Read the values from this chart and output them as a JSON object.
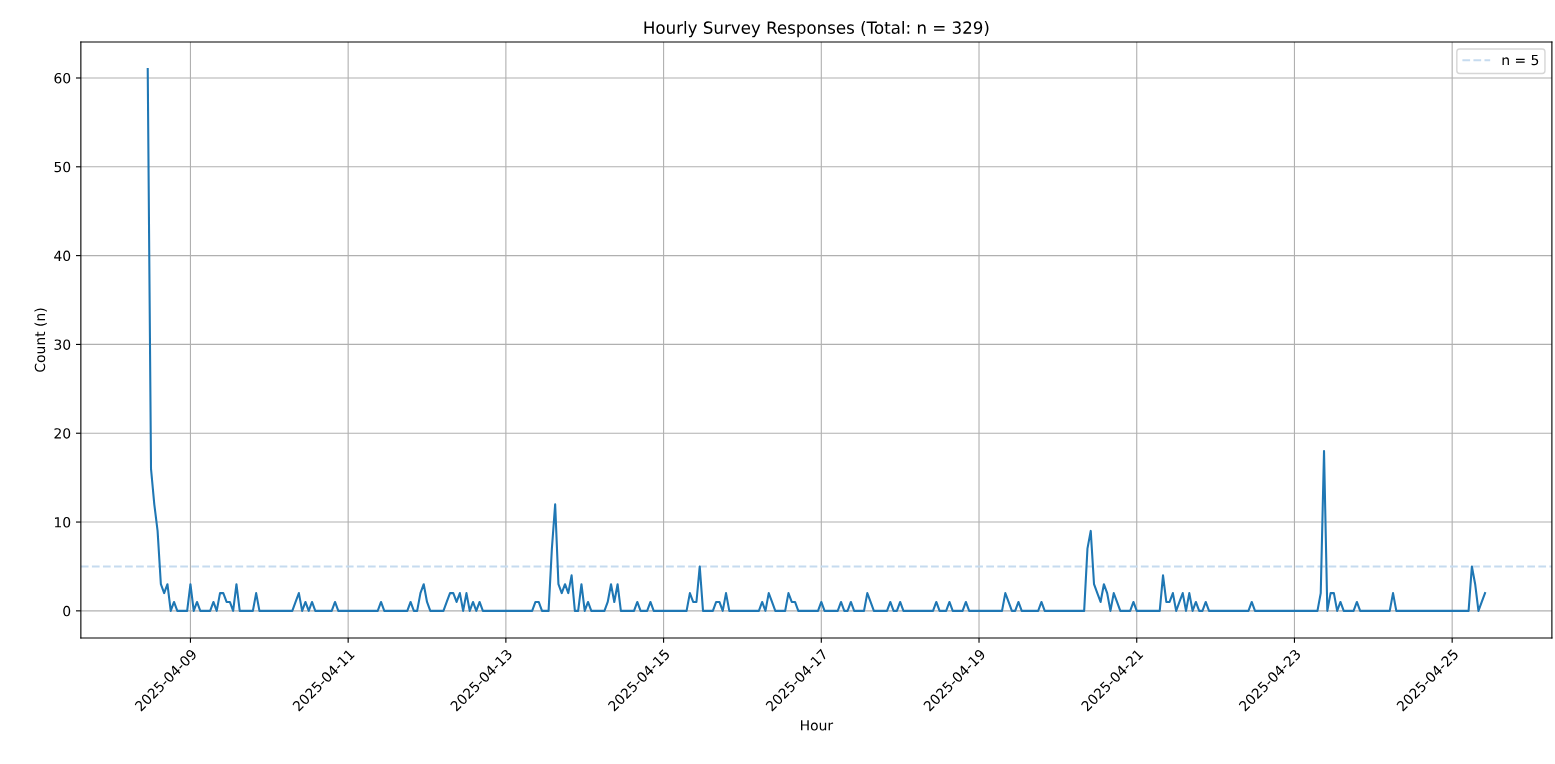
{
  "chart_data": {
    "type": "line",
    "title": "Hourly Survey Responses (Total: n = 329)",
    "xlabel": "Hour",
    "ylabel": "Count (n)",
    "x": [
      "2025-04-08T11:00",
      "2025-04-08T12:00",
      "2025-04-08T13:00",
      "2025-04-08T14:00",
      "2025-04-08T15:00",
      "2025-04-08T16:00",
      "2025-04-08T17:00",
      "2025-04-08T18:00",
      "2025-04-08T19:00",
      "2025-04-08T20:00",
      "2025-04-08T23:00",
      "2025-04-09T00:00",
      "2025-04-09T01:00",
      "2025-04-09T02:00",
      "2025-04-09T03:00",
      "2025-04-09T06:00",
      "2025-04-09T07:00",
      "2025-04-09T08:00",
      "2025-04-09T09:00",
      "2025-04-09T10:00",
      "2025-04-09T11:00",
      "2025-04-09T12:00",
      "2025-04-09T13:00",
      "2025-04-09T14:00",
      "2025-04-09T15:00",
      "2025-04-09T19:00",
      "2025-04-09T20:00",
      "2025-04-09T21:00",
      "2025-04-10T07:00",
      "2025-04-10T08:00",
      "2025-04-10T09:00",
      "2025-04-10T10:00",
      "2025-04-10T11:00",
      "2025-04-10T12:00",
      "2025-04-10T13:00",
      "2025-04-10T14:00",
      "2025-04-10T19:00",
      "2025-04-10T20:00",
      "2025-04-10T21:00",
      "2025-04-11T09:00",
      "2025-04-11T10:00",
      "2025-04-11T11:00",
      "2025-04-11T18:00",
      "2025-04-11T19:00",
      "2025-04-11T20:00",
      "2025-04-11T21:00",
      "2025-04-11T22:00",
      "2025-04-11T23:00",
      "2025-04-12T00:00",
      "2025-04-12T01:00",
      "2025-04-12T05:00",
      "2025-04-12T06:00",
      "2025-04-12T07:00",
      "2025-04-12T08:00",
      "2025-04-12T09:00",
      "2025-04-12T10:00",
      "2025-04-12T11:00",
      "2025-04-12T12:00",
      "2025-04-12T13:00",
      "2025-04-12T14:00",
      "2025-04-12T15:00",
      "2025-04-12T16:00",
      "2025-04-12T17:00",
      "2025-04-13T08:00",
      "2025-04-13T09:00",
      "2025-04-13T10:00",
      "2025-04-13T11:00",
      "2025-04-13T13:00",
      "2025-04-13T14:00",
      "2025-04-13T15:00",
      "2025-04-13T16:00",
      "2025-04-13T17:00",
      "2025-04-13T18:00",
      "2025-04-13T19:00",
      "2025-04-13T20:00",
      "2025-04-13T21:00",
      "2025-04-13T22:00",
      "2025-04-13T23:00",
      "2025-04-14T00:00",
      "2025-04-14T01:00",
      "2025-04-14T02:00",
      "2025-04-14T06:00",
      "2025-04-14T07:00",
      "2025-04-14T08:00",
      "2025-04-14T09:00",
      "2025-04-14T10:00",
      "2025-04-14T11:00",
      "2025-04-14T15:00",
      "2025-04-14T16:00",
      "2025-04-14T17:00",
      "2025-04-14T19:00",
      "2025-04-14T20:00",
      "2025-04-14T21:00",
      "2025-04-15T07:00",
      "2025-04-15T08:00",
      "2025-04-15T09:00",
      "2025-04-15T10:00",
      "2025-04-15T11:00",
      "2025-04-15T12:00",
      "2025-04-15T15:00",
      "2025-04-15T16:00",
      "2025-04-15T17:00",
      "2025-04-15T18:00",
      "2025-04-15T19:00",
      "2025-04-15T20:00",
      "2025-04-16T05:00",
      "2025-04-16T06:00",
      "2025-04-16T07:00",
      "2025-04-16T08:00",
      "2025-04-16T09:00",
      "2025-04-16T10:00",
      "2025-04-16T13:00",
      "2025-04-16T14:00",
      "2025-04-16T15:00",
      "2025-04-16T16:00",
      "2025-04-16T17:00",
      "2025-04-16T23:00",
      "2025-04-17T00:00",
      "2025-04-17T01:00",
      "2025-04-17T05:00",
      "2025-04-17T06:00",
      "2025-04-17T07:00",
      "2025-04-17T08:00",
      "2025-04-17T09:00",
      "2025-04-17T10:00",
      "2025-04-17T13:00",
      "2025-04-17T14:00",
      "2025-04-17T15:00",
      "2025-04-17T16:00",
      "2025-04-17T20:00",
      "2025-04-17T21:00",
      "2025-04-17T22:00",
      "2025-04-17T23:00",
      "2025-04-18T00:00",
      "2025-04-18T01:00",
      "2025-04-18T10:00",
      "2025-04-18T11:00",
      "2025-04-18T12:00",
      "2025-04-18T14:00",
      "2025-04-18T15:00",
      "2025-04-18T16:00",
      "2025-04-18T19:00",
      "2025-04-18T20:00",
      "2025-04-18T21:00",
      "2025-04-19T07:00",
      "2025-04-19T08:00",
      "2025-04-19T09:00",
      "2025-04-19T10:00",
      "2025-04-19T11:00",
      "2025-04-19T12:00",
      "2025-04-19T13:00",
      "2025-04-19T18:00",
      "2025-04-19T19:00",
      "2025-04-19T20:00",
      "2025-04-20T08:00",
      "2025-04-20T09:00",
      "2025-04-20T10:00",
      "2025-04-20T11:00",
      "2025-04-20T12:00",
      "2025-04-20T13:00",
      "2025-04-20T14:00",
      "2025-04-20T15:00",
      "2025-04-20T16:00",
      "2025-04-20T17:00",
      "2025-04-20T18:00",
      "2025-04-20T19:00",
      "2025-04-20T22:00",
      "2025-04-20T23:00",
      "2025-04-21T00:00",
      "2025-04-21T07:00",
      "2025-04-21T08:00",
      "2025-04-21T09:00",
      "2025-04-21T10:00",
      "2025-04-21T11:00",
      "2025-04-21T12:00",
      "2025-04-21T13:00",
      "2025-04-21T14:00",
      "2025-04-21T15:00",
      "2025-04-21T16:00",
      "2025-04-21T17:00",
      "2025-04-21T18:00",
      "2025-04-21T19:00",
      "2025-04-21T20:00",
      "2025-04-21T21:00",
      "2025-04-21T22:00",
      "2025-04-22T10:00",
      "2025-04-22T11:00",
      "2025-04-22T12:00",
      "2025-04-23T07:00",
      "2025-04-23T08:00",
      "2025-04-23T09:00",
      "2025-04-23T10:00",
      "2025-04-23T11:00",
      "2025-04-23T12:00",
      "2025-04-23T13:00",
      "2025-04-23T14:00",
      "2025-04-23T15:00",
      "2025-04-23T18:00",
      "2025-04-23T19:00",
      "2025-04-23T20:00",
      "2025-04-24T05:00",
      "2025-04-24T06:00",
      "2025-04-24T07:00",
      "2025-04-25T05:00",
      "2025-04-25T06:00",
      "2025-04-25T07:00",
      "2025-04-25T08:00",
      "2025-04-25T09:00",
      "2025-04-25T10:00"
    ],
    "series": [
      {
        "color": "#1f77b4",
        "values": [
          61,
          16,
          12,
          9,
          3,
          2,
          3,
          0,
          1,
          0,
          0,
          3,
          0,
          1,
          0,
          0,
          1,
          0,
          2,
          2,
          1,
          1,
          0,
          3,
          0,
          0,
          2,
          0,
          0,
          1,
          2,
          0,
          1,
          0,
          1,
          0,
          0,
          1,
          0,
          0,
          1,
          0,
          0,
          1,
          0,
          0,
          2,
          3,
          1,
          0,
          0,
          1,
          2,
          2,
          1,
          2,
          0,
          2,
          0,
          1,
          0,
          1,
          0,
          0,
          1,
          1,
          0,
          0,
          7,
          12,
          3,
          2,
          3,
          2,
          4,
          0,
          0,
          3,
          0,
          1,
          0,
          0,
          1,
          3,
          1,
          3,
          0,
          0,
          1,
          0,
          0,
          1,
          0,
          0,
          2,
          1,
          1,
          5,
          0,
          0,
          1,
          1,
          0,
          2,
          0,
          0,
          1,
          0,
          2,
          1,
          0,
          0,
          2,
          1,
          1,
          0,
          0,
          1,
          0,
          0,
          1,
          0,
          0,
          1,
          0,
          0,
          2,
          1,
          0,
          0,
          1,
          0,
          0,
          1,
          0,
          0,
          1,
          0,
          0,
          1,
          0,
          0,
          1,
          0,
          0,
          2,
          1,
          0,
          0,
          1,
          0,
          0,
          1,
          0,
          0,
          7,
          9,
          3,
          2,
          1,
          3,
          2,
          0,
          2,
          1,
          0,
          0,
          1,
          0,
          0,
          4,
          1,
          1,
          2,
          0,
          1,
          2,
          0,
          2,
          0,
          1,
          0,
          0,
          1,
          0,
          0,
          1,
          0,
          0,
          2,
          18,
          0,
          2,
          2,
          0,
          1,
          0,
          0,
          1,
          0,
          0,
          2,
          0,
          0,
          5,
          3,
          0,
          1,
          2
        ]
      }
    ],
    "xlim": [
      "2025-04-07T14:39",
      "2025-04-26T06:21"
    ],
    "xticks": [
      "2025-04-09",
      "2025-04-11",
      "2025-04-13",
      "2025-04-15",
      "2025-04-17",
      "2025-04-19",
      "2025-04-21",
      "2025-04-23",
      "2025-04-25"
    ],
    "ylim": [
      -3.05,
      64.05
    ],
    "yticks": [
      0,
      10,
      20,
      30,
      40,
      50,
      60
    ],
    "ref_lines": [
      {
        "axis": "y",
        "value": 5,
        "label": "n = 5",
        "color": "#c6dbef",
        "line_style": "dashed"
      }
    ],
    "grid": true,
    "legend": "top right",
    "line_style": "solid",
    "marker": "none"
  }
}
